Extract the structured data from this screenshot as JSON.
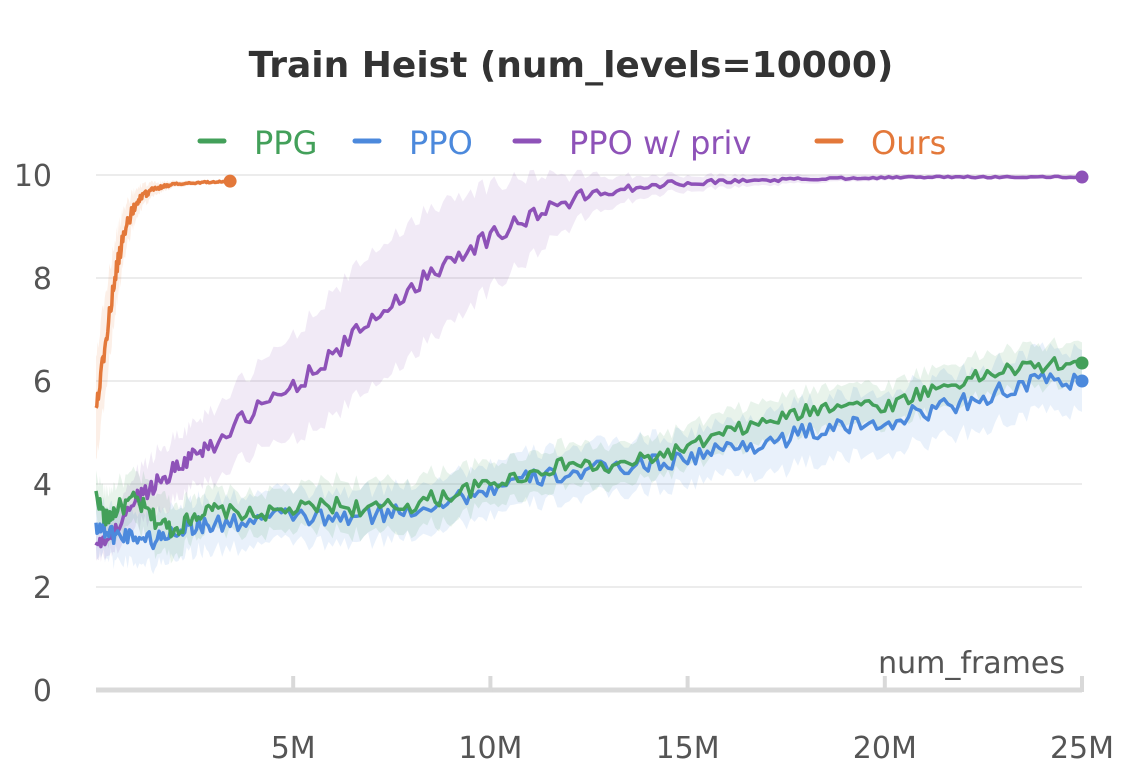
{
  "chart_data": {
    "type": "line",
    "title": "Train Heist (num_levels=10000)",
    "xlabel": "num_frames",
    "ylabel": "",
    "xlim": [
      0,
      25000000
    ],
    "ylim": [
      0,
      10
    ],
    "y_ticks": [
      {
        "value": 0,
        "label": "0"
      },
      {
        "value": 2,
        "label": "2"
      },
      {
        "value": 4,
        "label": "4"
      },
      {
        "value": 6,
        "label": "6"
      },
      {
        "value": 8,
        "label": "8"
      },
      {
        "value": 10,
        "label": "10"
      }
    ],
    "x_ticks": [
      {
        "value": 5000000,
        "label": "5M"
      },
      {
        "value": 10000000,
        "label": "10M"
      },
      {
        "value": 15000000,
        "label": "15M"
      },
      {
        "value": 20000000,
        "label": "20M"
      },
      {
        "value": 25000000,
        "label": "25M"
      }
    ],
    "grid": true,
    "legend_position": "top",
    "series": [
      {
        "name": "PPG",
        "color": "#43a05a",
        "x": [
          0,
          250000,
          500000,
          1000000,
          1500000,
          2000000,
          2500000,
          3000000,
          4000000,
          5000000,
          6000000,
          7000000,
          8000000,
          9000000,
          10000000,
          11000000,
          12000000,
          13000000,
          14000000,
          15000000,
          16000000,
          17000000,
          18000000,
          19000000,
          20000000,
          21000000,
          22000000,
          23000000,
          24000000,
          25000000
        ],
        "y": [
          3.8,
          3.3,
          3.5,
          3.7,
          3.3,
          3.1,
          3.4,
          3.5,
          3.4,
          3.5,
          3.6,
          3.5,
          3.6,
          3.8,
          4.0,
          4.2,
          4.4,
          4.3,
          4.5,
          4.7,
          5.0,
          5.2,
          5.4,
          5.6,
          5.5,
          5.8,
          6.0,
          6.2,
          6.3,
          6.35
        ],
        "band": [
          0.4,
          0.5,
          0.5,
          0.5,
          0.6,
          0.5,
          0.4,
          0.4,
          0.4,
          0.4,
          0.5,
          0.5,
          0.5,
          0.5,
          0.4,
          0.4,
          0.4,
          0.4,
          0.4,
          0.4,
          0.4,
          0.4,
          0.4,
          0.4,
          0.4,
          0.4,
          0.4,
          0.4,
          0.4,
          0.4
        ]
      },
      {
        "name": "PPO",
        "color": "#4c89dc",
        "x": [
          0,
          250000,
          500000,
          1000000,
          1500000,
          2000000,
          2500000,
          3000000,
          4000000,
          5000000,
          6000000,
          7000000,
          8000000,
          9000000,
          10000000,
          11000000,
          12000000,
          13000000,
          14000000,
          15000000,
          16000000,
          17000000,
          18000000,
          19000000,
          20000000,
          21000000,
          22000000,
          23000000,
          24000000,
          25000000
        ],
        "y": [
          3.2,
          3.1,
          3.0,
          3.0,
          2.9,
          3.1,
          3.2,
          3.2,
          3.3,
          3.4,
          3.3,
          3.4,
          3.5,
          3.7,
          3.9,
          4.1,
          4.2,
          4.3,
          4.4,
          4.5,
          4.7,
          4.8,
          5.0,
          5.1,
          5.2,
          5.4,
          5.6,
          5.8,
          6.0,
          6.0
        ],
        "band": [
          0.5,
          0.5,
          0.5,
          0.5,
          0.5,
          0.5,
          0.5,
          0.5,
          0.5,
          0.5,
          0.5,
          0.5,
          0.5,
          0.5,
          0.5,
          0.5,
          0.5,
          0.5,
          0.5,
          0.5,
          0.5,
          0.6,
          0.6,
          0.6,
          0.6,
          0.6,
          0.6,
          0.6,
          0.6,
          0.6
        ]
      },
      {
        "name": "PPO w/ priv",
        "color": "#8e52b8",
        "x": [
          0,
          250000,
          500000,
          1000000,
          1500000,
          2000000,
          2500000,
          3000000,
          4000000,
          5000000,
          6000000,
          7000000,
          8000000,
          9000000,
          10000000,
          11000000,
          12000000,
          13000000,
          14000000,
          15000000,
          16000000,
          17000000,
          18000000,
          19000000,
          20000000,
          21000000,
          22000000,
          23000000,
          24000000,
          25000000
        ],
        "y": [
          2.8,
          2.9,
          3.1,
          3.7,
          4.0,
          4.3,
          4.6,
          4.8,
          5.4,
          5.9,
          6.5,
          7.2,
          7.8,
          8.4,
          8.8,
          9.2,
          9.5,
          9.7,
          9.8,
          9.85,
          9.88,
          9.9,
          9.92,
          9.94,
          9.95,
          9.96,
          9.96,
          9.96,
          9.96,
          9.96
        ],
        "band": [
          0.3,
          0.3,
          0.4,
          0.5,
          0.6,
          0.6,
          0.6,
          0.7,
          0.8,
          1.0,
          1.2,
          1.3,
          1.3,
          1.2,
          1.0,
          0.8,
          0.5,
          0.3,
          0.2,
          0.15,
          0.12,
          0.1,
          0.08,
          0.06,
          0.05,
          0.04,
          0.04,
          0.04,
          0.04,
          0.04
        ]
      },
      {
        "name": "Ours",
        "color": "#e3783a",
        "x": [
          0,
          200000,
          400000,
          600000,
          800000,
          1000000,
          1200000,
          1400000,
          1600000,
          1800000,
          2000000,
          2400000,
          2800000,
          3100000,
          3400000
        ],
        "y": [
          5.5,
          6.5,
          7.6,
          8.5,
          9.1,
          9.4,
          9.6,
          9.7,
          9.75,
          9.8,
          9.82,
          9.84,
          9.86,
          9.87,
          9.88
        ],
        "band": [
          1.0,
          1.0,
          0.8,
          0.6,
          0.4,
          0.3,
          0.2,
          0.15,
          0.1,
          0.08,
          0.06,
          0.05,
          0.04,
          0.04,
          0.04
        ]
      }
    ]
  }
}
